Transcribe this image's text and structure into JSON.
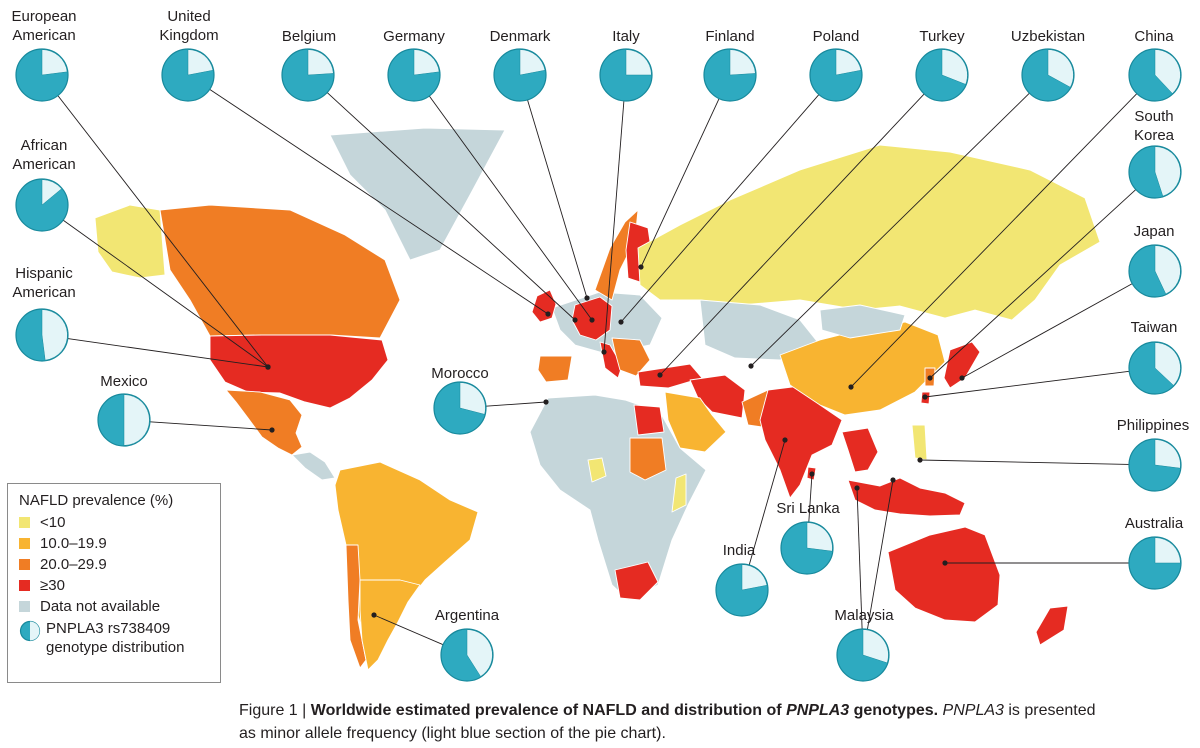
{
  "colors": {
    "lt10": "#f2e673",
    "10to19": "#f8b431",
    "20to29": "#f07d24",
    "ge30": "#e52b22",
    "na": "#c5d6da",
    "pie_minor": "#e4f5f8",
    "pie_major": "#2eaac0",
    "pie_stroke": "#17899c",
    "leader": "#231f20"
  },
  "legend": {
    "title": "NAFLD prevalence (%)",
    "items": [
      {
        "label": "<10",
        "color_key": "lt10"
      },
      {
        "label": "10.0–19.9",
        "color_key": "10to19"
      },
      {
        "label": "20.0–29.9",
        "color_key": "20to29"
      },
      {
        "label": "≥30",
        "color_key": "ge30"
      },
      {
        "label": "Data not available",
        "color_key": "na"
      }
    ],
    "pie_label_line1": "PNPLA3 rs738409",
    "pie_label_line2": "genotype distribution",
    "pie_example_fraction": 0.5
  },
  "caption": {
    "prefix": "Figure 1 | ",
    "bold_a": "Worldwide estimated prevalence of NAFLD and distribution of ",
    "bold_gene": "PNPLA3",
    "bold_b": " genotypes.",
    "gene_plain": "PNPLA3",
    "rest_line1": " is presented",
    "line2": "as minor allele frequency (light blue section of the pie chart)."
  },
  "regions": [
    {
      "id": "alaska",
      "label": "",
      "category": "lt10"
    },
    {
      "id": "canada",
      "label": "",
      "category": "20to29"
    },
    {
      "id": "greenland",
      "label": "",
      "category": "na"
    },
    {
      "id": "usa",
      "label": "",
      "category": "ge30"
    },
    {
      "id": "mexico",
      "label": "",
      "category": "20to29"
    },
    {
      "id": "central-america",
      "label": "",
      "category": "na"
    },
    {
      "id": "south-america",
      "label": "",
      "category": "10to19"
    },
    {
      "id": "chile",
      "label": "",
      "category": "20to29"
    },
    {
      "id": "argentina",
      "label": "",
      "category": "10to19"
    },
    {
      "id": "west-europe",
      "label": "",
      "category": "na"
    },
    {
      "id": "uk",
      "label": "",
      "category": "ge30"
    },
    {
      "id": "iberia",
      "label": "",
      "category": "20to29"
    },
    {
      "id": "central-europe",
      "label": "",
      "category": "ge30"
    },
    {
      "id": "scandinavia",
      "label": "",
      "category": "20to29"
    },
    {
      "id": "finland",
      "label": "",
      "category": "ge30"
    },
    {
      "id": "italy",
      "label": "",
      "category": "ge30"
    },
    {
      "id": "balkans",
      "label": "",
      "category": "20to29"
    },
    {
      "id": "russia",
      "label": "",
      "category": "lt10"
    },
    {
      "id": "turkey",
      "label": "",
      "category": "ge30"
    },
    {
      "id": "central-asia",
      "label": "",
      "category": "na"
    },
    {
      "id": "middle-east",
      "label": "",
      "category": "ge30"
    },
    {
      "id": "arabia",
      "label": "",
      "category": "10to19"
    },
    {
      "id": "africa",
      "label": "",
      "category": "na"
    },
    {
      "id": "egypt",
      "label": "",
      "category": "ge30"
    },
    {
      "id": "sudan",
      "label": "",
      "category": "20to29"
    },
    {
      "id": "nigeria",
      "label": "",
      "category": "lt10"
    },
    {
      "id": "somalia",
      "label": "",
      "category": "lt10"
    },
    {
      "id": "south-africa",
      "label": "",
      "category": "ge30"
    },
    {
      "id": "pakistan",
      "label": "",
      "category": "20to29"
    },
    {
      "id": "india",
      "label": "",
      "category": "ge30"
    },
    {
      "id": "sri-lanka",
      "label": "",
      "category": "ge30"
    },
    {
      "id": "china",
      "label": "",
      "category": "10to19"
    },
    {
      "id": "mongolia",
      "label": "",
      "category": "na"
    },
    {
      "id": "southeast-asia",
      "label": "",
      "category": "ge30"
    },
    {
      "id": "korea",
      "label": "",
      "category": "20to29"
    },
    {
      "id": "japan",
      "label": "",
      "category": "ge30"
    },
    {
      "id": "taiwan",
      "label": "",
      "category": "ge30"
    },
    {
      "id": "philippines",
      "label": "",
      "category": "lt10"
    },
    {
      "id": "indonesia",
      "label": "",
      "category": "ge30"
    },
    {
      "id": "australia",
      "label": "",
      "category": "ge30"
    },
    {
      "id": "new-zealand",
      "label": "",
      "category": "ge30"
    }
  ],
  "pies": [
    {
      "name": "European American",
      "lines": [
        "European",
        "American"
      ],
      "minor": 0.23
    },
    {
      "name": "United Kingdom",
      "lines": [
        "United",
        "Kingdom"
      ],
      "minor": 0.22
    },
    {
      "name": "Belgium",
      "lines": [
        "Belgium"
      ],
      "minor": 0.24
    },
    {
      "name": "Germany",
      "lines": [
        "Germany"
      ],
      "minor": 0.23
    },
    {
      "name": "Denmark",
      "lines": [
        "Denmark"
      ],
      "minor": 0.22
    },
    {
      "name": "Italy",
      "lines": [
        "Italy"
      ],
      "minor": 0.25
    },
    {
      "name": "Finland",
      "lines": [
        "Finland"
      ],
      "minor": 0.24
    },
    {
      "name": "Poland",
      "lines": [
        "Poland"
      ],
      "minor": 0.22
    },
    {
      "name": "Turkey",
      "lines": [
        "Turkey"
      ],
      "minor": 0.31
    },
    {
      "name": "Uzbekistan",
      "lines": [
        "Uzbekistan"
      ],
      "minor": 0.33
    },
    {
      "name": "China",
      "lines": [
        "China"
      ],
      "minor": 0.38
    },
    {
      "name": "South Korea",
      "lines": [
        "South",
        "Korea"
      ],
      "minor": 0.45
    },
    {
      "name": "Japan",
      "lines": [
        "Japan"
      ],
      "minor": 0.43
    },
    {
      "name": "Taiwan",
      "lines": [
        "Taiwan"
      ],
      "minor": 0.37
    },
    {
      "name": "Philippines",
      "lines": [
        "Philippines"
      ],
      "minor": 0.27
    },
    {
      "name": "Australia",
      "lines": [
        "Australia"
      ],
      "minor": 0.25
    },
    {
      "name": "Malaysia",
      "lines": [
        "Malaysia"
      ],
      "minor": 0.3
    },
    {
      "name": "Sri Lanka",
      "lines": [
        "Sri Lanka"
      ],
      "minor": 0.27
    },
    {
      "name": "India",
      "lines": [
        "India"
      ],
      "minor": 0.22
    },
    {
      "name": "Argentina",
      "lines": [
        "Argentina"
      ],
      "minor": 0.41
    },
    {
      "name": "Morocco",
      "lines": [
        "Morocco"
      ],
      "minor": 0.29
    },
    {
      "name": "Mexico",
      "lines": [
        "Mexico"
      ],
      "minor": 0.5
    },
    {
      "name": "Hispanic American",
      "lines": [
        "Hispanic",
        "American"
      ],
      "minor": 0.48
    },
    {
      "name": "African American",
      "lines": [
        "African",
        "American"
      ],
      "minor": 0.14
    }
  ]
}
